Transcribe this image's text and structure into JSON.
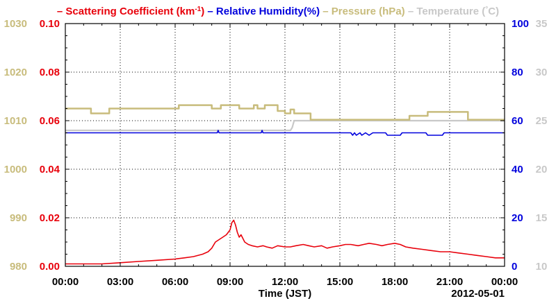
{
  "chart_data": {
    "type": "line",
    "date_label": "2012-05-01",
    "xlabel": "Time (JST)",
    "x_ticks": [
      "00:00",
      "03:00",
      "06:00",
      "09:00",
      "12:00",
      "15:00",
      "18:00",
      "21:00",
      "00:00"
    ],
    "grid": true,
    "legend_position": "top",
    "axes": {
      "pressure": {
        "label": "Pressure (hPa)",
        "range": [
          980,
          1030
        ],
        "ticks": [
          "980",
          "990",
          "1000",
          "1010",
          "1020",
          "1030"
        ],
        "color": "#c8bc7c"
      },
      "scattering": {
        "label": "Scattering Coefficient (km-1)",
        "range": [
          0.0,
          0.1
        ],
        "ticks": [
          "0.00",
          "0.02",
          "0.04",
          "0.06",
          "0.08",
          "0.10"
        ],
        "color": "#e8000b"
      },
      "humidity": {
        "label": "Relative Humidity(%)",
        "range": [
          0,
          100
        ],
        "ticks": [
          "0",
          "20",
          "40",
          "60",
          "80",
          "100"
        ],
        "color": "#0000dd"
      },
      "temperature": {
        "label": "Temperature (C)",
        "range": [
          10,
          35
        ],
        "ticks": [
          "10",
          "15",
          "20",
          "25",
          "30",
          "35"
        ],
        "color": "#c8c8c8"
      }
    },
    "legend": [
      {
        "dash": "–",
        "text": "Scattering Coefficient (km",
        "sup": "-1",
        "tail": ")",
        "color": "#e8000b"
      },
      {
        "dash": "–",
        "text": "Relative Humidity(%)",
        "sup": "",
        "tail": "",
        "color": "#0000dd"
      },
      {
        "dash": "–",
        "text": "Pressure (hPa)",
        "sup": "",
        "tail": "",
        "color": "#c8bc7c"
      },
      {
        "dash": "–",
        "text": "Temperature (",
        "sup": "°",
        "tail": "C)",
        "color": "#c8c8c8"
      }
    ],
    "series": [
      {
        "name": "Scattering Coefficient",
        "axis": "scattering",
        "color": "#e8000b",
        "x_hours": [
          0,
          1,
          2,
          3,
          4,
          5,
          6,
          6.5,
          7,
          7.5,
          7.8,
          8.0,
          8.2,
          8.4,
          8.6,
          8.8,
          9.0,
          9.1,
          9.2,
          9.3,
          9.4,
          9.5,
          9.6,
          9.8,
          10.0,
          10.2,
          10.5,
          10.8,
          11.0,
          11.3,
          11.6,
          12.0,
          12.3,
          12.6,
          13.0,
          13.3,
          13.6,
          14.0,
          14.3,
          14.6,
          15.0,
          15.3,
          15.6,
          16.0,
          16.3,
          16.6,
          17.0,
          17.3,
          17.6,
          18.0,
          18.3,
          18.6,
          19.0,
          19.5,
          20.0,
          20.5,
          21.0,
          21.5,
          22.0,
          22.5,
          23.0,
          23.5,
          24.0
        ],
        "y": [
          0.001,
          0.001,
          0.001,
          0.0015,
          0.002,
          0.0025,
          0.003,
          0.0035,
          0.004,
          0.005,
          0.006,
          0.0075,
          0.01,
          0.011,
          0.012,
          0.013,
          0.015,
          0.018,
          0.019,
          0.017,
          0.014,
          0.012,
          0.013,
          0.01,
          0.009,
          0.0085,
          0.008,
          0.0085,
          0.008,
          0.0075,
          0.0085,
          0.008,
          0.008,
          0.0085,
          0.009,
          0.0085,
          0.008,
          0.0085,
          0.0075,
          0.008,
          0.0085,
          0.009,
          0.009,
          0.0085,
          0.009,
          0.0095,
          0.009,
          0.0085,
          0.009,
          0.0095,
          0.009,
          0.008,
          0.0075,
          0.007,
          0.0065,
          0.006,
          0.006,
          0.0055,
          0.005,
          0.0045,
          0.004,
          0.0035,
          0.0035
        ]
      },
      {
        "name": "Relative Humidity",
        "axis": "humidity",
        "color": "#0000dd",
        "x_hours": [
          0,
          8.3,
          8.35,
          8.4,
          10.7,
          10.75,
          10.8,
          15.6,
          15.7,
          15.8,
          15.9,
          16.1,
          16.2,
          16.4,
          16.6,
          16.8,
          17.0,
          17.5,
          17.6,
          18.3,
          18.4,
          18.8,
          19.7,
          19.8,
          19.9,
          20.6,
          20.7,
          24.0
        ],
        "y": [
          55,
          55,
          56,
          55,
          55,
          56,
          55,
          55,
          54,
          55,
          54,
          55,
          54,
          55,
          54,
          55,
          55,
          55,
          54,
          54,
          55,
          55,
          55,
          54,
          54,
          54,
          55,
          55
        ]
      },
      {
        "name": "Pressure",
        "axis": "pressure",
        "color": "#c8bc7c",
        "x_hours": [
          0,
          1.4,
          1.4,
          2.4,
          2.4,
          6.2,
          6.2,
          8.0,
          8.0,
          8.5,
          8.5,
          9.5,
          9.5,
          10.3,
          10.3,
          10.5,
          10.5,
          10.9,
          10.9,
          11.6,
          11.6,
          12.0,
          12.0,
          12.3,
          12.3,
          12.5,
          12.5,
          13.4,
          13.4,
          18.8,
          18.8,
          19.8,
          19.8,
          22.0,
          22.0,
          24.0
        ],
        "y": [
          1012.5,
          1012.5,
          1011.5,
          1011.5,
          1012.5,
          1012.5,
          1013.2,
          1013.2,
          1012.5,
          1012.5,
          1013.2,
          1013.2,
          1012.5,
          1012.5,
          1013.2,
          1013.2,
          1012.5,
          1012.5,
          1013.2,
          1013.2,
          1012.0,
          1012.0,
          1011.5,
          1011.5,
          1012.3,
          1012.3,
          1011.5,
          1011.5,
          1010.2,
          1010.2,
          1011.0,
          1011.0,
          1011.8,
          1011.8,
          1010.2,
          1010.2
        ]
      },
      {
        "name": "Temperature",
        "axis": "temperature",
        "color": "#c8c8c8",
        "x_hours": [
          0,
          12.3,
          12.4,
          12.5,
          24.0
        ],
        "y": [
          24.0,
          24.0,
          24.3,
          25.0,
          25.0
        ]
      }
    ]
  }
}
